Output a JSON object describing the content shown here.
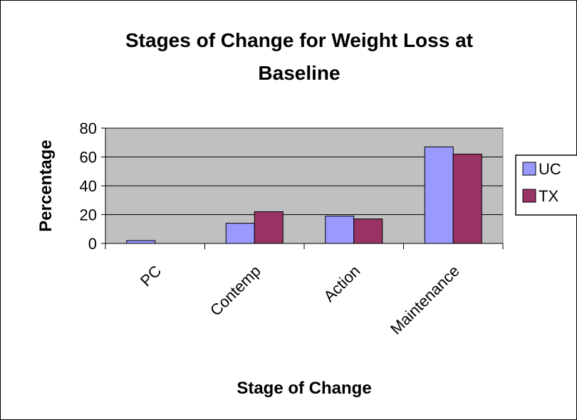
{
  "chart_data": {
    "type": "bar",
    "title_lines": [
      "Stages of Change for Weight Loss at",
      "Baseline"
    ],
    "xlabel": "Stage of Change",
    "ylabel": "Percentage",
    "categories": [
      "PC",
      "Contemp",
      "Action",
      "Maintenance"
    ],
    "series": [
      {
        "name": "UC",
        "values": [
          2,
          14,
          19,
          67
        ],
        "color": "#9999FF"
      },
      {
        "name": "TX",
        "values": [
          0,
          22,
          17,
          62
        ],
        "color": "#993366"
      }
    ],
    "ylim": [
      0,
      80
    ],
    "yticks": [
      0,
      20,
      40,
      60,
      80
    ],
    "grid": true,
    "plot_background": "#C0C0C0",
    "legend_position": "right"
  }
}
